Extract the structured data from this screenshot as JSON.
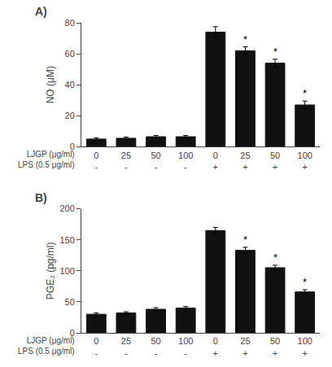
{
  "chart_data": [
    {
      "type": "bar",
      "title": "A)",
      "ylabel": "NO (μM)",
      "categories": [
        [
          "0",
          "-"
        ],
        [
          "25",
          "-"
        ],
        [
          "50",
          "-"
        ],
        [
          "100",
          "-"
        ],
        [
          "0",
          "+"
        ],
        [
          "25",
          "+"
        ],
        [
          "50",
          "+"
        ],
        [
          "100",
          "+"
        ]
      ],
      "xlabel": [
        "LJGP (μg/ml)",
        "LPS (0.5 μg/ml)"
      ],
      "values": [
        5.0,
        5.5,
        6.5,
        6.5,
        74.0,
        62.0,
        54.0,
        27.0
      ],
      "errors": [
        0.8,
        0.8,
        0.8,
        0.8,
        3.5,
        2.5,
        2.5,
        2.5
      ],
      "significance": [
        false,
        false,
        false,
        false,
        false,
        true,
        true,
        true
      ],
      "significance_label": "*",
      "color": "#111111",
      "ylim": [
        0,
        80
      ],
      "yticks": [
        0,
        20,
        40,
        60,
        80
      ],
      "grid": false
    },
    {
      "type": "bar",
      "title": "B)",
      "ylabel": "PGE₂ (pg/ml)",
      "categories": [
        [
          "0",
          "-"
        ],
        [
          "25",
          "-"
        ],
        [
          "50",
          "-"
        ],
        [
          "100",
          "-"
        ],
        [
          "0",
          "+"
        ],
        [
          "25",
          "+"
        ],
        [
          "50",
          "+"
        ],
        [
          "100",
          "+"
        ]
      ],
      "xlabel": [
        "LJGP (μg/ml)",
        "LPS (0.5 μg/ml)"
      ],
      "values": [
        30.0,
        32.0,
        38.0,
        40.0,
        165.0,
        133.0,
        105.0,
        66.0
      ],
      "errors": [
        2.0,
        2.0,
        2.5,
        2.5,
        5.0,
        5.0,
        4.0,
        3.5
      ],
      "significance": [
        false,
        false,
        false,
        false,
        false,
        true,
        true,
        true
      ],
      "significance_label": "*",
      "color": "#111111",
      "ylim": [
        0,
        200
      ],
      "yticks": [
        0,
        50,
        100,
        150,
        200
      ],
      "grid": false
    }
  ]
}
